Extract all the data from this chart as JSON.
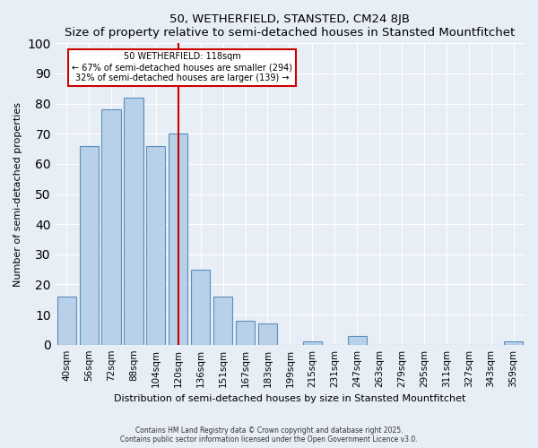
{
  "title": "50, WETHERFIELD, STANSTED, CM24 8JB",
  "subtitle": "Size of property relative to semi-detached houses in Stansted Mountfitchet",
  "xlabel": "Distribution of semi-detached houses by size in Stansted Mountfitchet",
  "ylabel": "Number of semi-detached properties",
  "categories": [
    "40sqm",
    "56sqm",
    "72sqm",
    "88sqm",
    "104sqm",
    "120sqm",
    "136sqm",
    "151sqm",
    "167sqm",
    "183sqm",
    "199sqm",
    "215sqm",
    "231sqm",
    "247sqm",
    "263sqm",
    "279sqm",
    "295sqm",
    "311sqm",
    "327sqm",
    "343sqm",
    "359sqm"
  ],
  "values": [
    16,
    66,
    78,
    82,
    66,
    70,
    25,
    16,
    8,
    7,
    0,
    1,
    0,
    3,
    0,
    0,
    0,
    0,
    0,
    0,
    1
  ],
  "bar_color": "#b8d0e8",
  "bar_edge_color": "#5a8fc0",
  "vline_index": 5,
  "vline_color": "#cc0000",
  "annotation_title": "50 WETHERFIELD: 118sqm",
  "annotation_line1": "← 67% of semi-detached houses are smaller (294)",
  "annotation_line2": "32% of semi-detached houses are larger (139) →",
  "annotation_box_color": "#ffffff",
  "annotation_box_edge": "#cc0000",
  "ylim": [
    0,
    100
  ],
  "yticks": [
    0,
    10,
    20,
    30,
    40,
    50,
    60,
    70,
    80,
    90,
    100
  ],
  "bg_color": "#e8eef5",
  "footer_line1": "Contains HM Land Registry data © Crown copyright and database right 2025.",
  "footer_line2": "Contains public sector information licensed under the Open Government Licence v3.0."
}
